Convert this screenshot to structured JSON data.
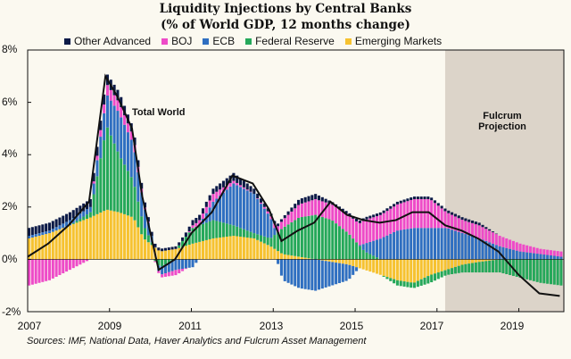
{
  "chart_data": {
    "type": "bar",
    "stacked": true,
    "title": "Liquidity Injections by Central Banks",
    "subtitle": "(% of World GDP, 12 months change)",
    "xlabel": "",
    "ylabel": "",
    "ylim": [
      -2,
      8
    ],
    "yticks": [
      "8%",
      "6%",
      "4%",
      "2%",
      "0%",
      "-2%"
    ],
    "ytick_values": [
      8,
      6,
      4,
      2,
      0,
      -2
    ],
    "xlim": [
      2007.0,
      2020.1
    ],
    "xticks": [
      "2007",
      "2009",
      "2011",
      "2013",
      "2015",
      "2017",
      "2019"
    ],
    "xtick_values": [
      2007,
      2009,
      2011,
      2013,
      2015,
      2017,
      2019
    ],
    "legend_position": "top",
    "colors": {
      "Other Advanced": "#0c1a47",
      "BOJ": "#ee4bc8",
      "ECB": "#2f6fc1",
      "Federal Reserve": "#25a85a",
      "Emerging Markets": "#f6c230",
      "Total World": "#111111",
      "projection_shade": "#dcd4c9"
    },
    "projection_start": 2017.2,
    "series": [
      {
        "name": "Emerging Markets",
        "x": [
          2007.0,
          2007.5,
          2008.0,
          2008.5,
          2008.9,
          2009.2,
          2009.55,
          2009.8,
          2010.2,
          2010.6,
          2011.0,
          2011.5,
          2012.0,
          2012.5,
          2012.9,
          2013.2,
          2013.6,
          2014.0,
          2014.4,
          2014.8,
          2015.2,
          2015.6,
          2016.0,
          2016.4,
          2016.8,
          2017.2,
          2017.6,
          2018.0,
          2018.5,
          2019.0,
          2019.5,
          2020.0
        ],
        "values": [
          0.8,
          1.0,
          1.3,
          1.6,
          1.9,
          1.8,
          1.6,
          0.8,
          0.3,
          0.4,
          0.6,
          0.8,
          0.9,
          0.8,
          0.5,
          0.2,
          0.1,
          0.0,
          -0.1,
          -0.2,
          -0.4,
          -0.6,
          -0.8,
          -0.9,
          -0.6,
          -0.4,
          -0.2,
          -0.1,
          0.0,
          0.0,
          0.0,
          0.0
        ]
      },
      {
        "name": "Federal Reserve",
        "x": [
          2007.0,
          2007.5,
          2008.0,
          2008.5,
          2008.9,
          2009.2,
          2009.55,
          2009.8,
          2010.2,
          2010.6,
          2011.0,
          2011.5,
          2012.0,
          2012.5,
          2012.9,
          2013.2,
          2013.6,
          2014.0,
          2014.4,
          2014.8,
          2015.2,
          2015.6,
          2016.0,
          2016.4,
          2016.8,
          2017.2,
          2017.6,
          2018.0,
          2018.5,
          2019.0,
          2019.5,
          2020.0
        ],
        "values": [
          0.0,
          0.0,
          0.0,
          0.2,
          3.2,
          2.2,
          1.4,
          0.5,
          -0.3,
          0.0,
          0.6,
          0.7,
          0.4,
          0.2,
          0.3,
          1.0,
          1.5,
          1.7,
          1.5,
          1.0,
          0.3,
          0.0,
          -0.2,
          -0.2,
          -0.3,
          -0.2,
          -0.3,
          -0.4,
          -0.5,
          -0.7,
          -0.9,
          -1.0
        ]
      },
      {
        "name": "ECB",
        "x": [
          2007.0,
          2007.5,
          2008.0,
          2008.5,
          2008.9,
          2009.2,
          2009.55,
          2009.8,
          2010.2,
          2010.6,
          2011.0,
          2011.5,
          2012.0,
          2012.5,
          2012.9,
          2013.2,
          2013.6,
          2014.0,
          2014.4,
          2014.8,
          2015.2,
          2015.6,
          2016.0,
          2016.4,
          2016.8,
          2017.2,
          2017.6,
          2018.0,
          2018.5,
          2019.0,
          2019.5,
          2020.0
        ],
        "values": [
          0.1,
          0.1,
          0.2,
          0.2,
          1.2,
          1.6,
          1.4,
          0.8,
          -0.3,
          -0.4,
          -0.3,
          0.7,
          1.6,
          1.5,
          0.8,
          -0.8,
          -1.1,
          -1.2,
          -0.9,
          -0.6,
          0.3,
          0.8,
          1.1,
          1.2,
          1.2,
          1.2,
          1.0,
          0.8,
          0.5,
          0.3,
          0.2,
          0.1
        ]
      },
      {
        "name": "BOJ",
        "x": [
          2007.0,
          2007.5,
          2008.0,
          2008.5,
          2008.9,
          2009.2,
          2009.55,
          2009.8,
          2010.2,
          2010.6,
          2011.0,
          2011.5,
          2012.0,
          2012.5,
          2012.9,
          2013.2,
          2013.6,
          2014.0,
          2014.4,
          2014.8,
          2015.2,
          2015.6,
          2016.0,
          2016.4,
          2016.8,
          2017.2,
          2017.6,
          2018.0,
          2018.5,
          2019.0,
          2019.5,
          2020.0
        ],
        "values": [
          -1.0,
          -0.8,
          -0.4,
          0.0,
          0.4,
          0.4,
          0.3,
          0.1,
          -0.1,
          -0.2,
          0.1,
          0.3,
          0.1,
          0.0,
          0.1,
          0.3,
          0.5,
          0.6,
          0.6,
          0.7,
          0.9,
          0.9,
          1.0,
          1.1,
          1.1,
          0.6,
          0.5,
          0.5,
          0.4,
          0.3,
          0.2,
          0.2
        ]
      },
      {
        "name": "Other Advanced",
        "x": [
          2007.0,
          2007.5,
          2008.0,
          2008.5,
          2008.9,
          2009.2,
          2009.55,
          2009.8,
          2010.2,
          2010.6,
          2011.0,
          2011.5,
          2012.0,
          2012.5,
          2012.9,
          2013.2,
          2013.6,
          2014.0,
          2014.4,
          2014.8,
          2015.2,
          2015.6,
          2016.0,
          2016.4,
          2016.8,
          2017.2,
          2017.6,
          2018.0,
          2018.5,
          2019.0,
          2019.5,
          2020.0
        ],
        "values": [
          0.3,
          0.3,
          0.3,
          0.3,
          0.4,
          0.4,
          0.3,
          0.2,
          0.1,
          0.1,
          0.2,
          0.2,
          0.3,
          0.2,
          0.1,
          0.1,
          0.2,
          0.2,
          0.1,
          0.1,
          0.1,
          0.1,
          0.1,
          0.1,
          0.1,
          0.1,
          0.1,
          0.1,
          0.0,
          0.0,
          0.0,
          0.0
        ]
      },
      {
        "name": "Total World",
        "type": "line",
        "x": [
          2007.0,
          2007.5,
          2008.0,
          2008.5,
          2008.9,
          2009.2,
          2009.55,
          2009.8,
          2010.2,
          2010.6,
          2011.0,
          2011.5,
          2012.0,
          2012.5,
          2012.9,
          2013.2,
          2013.6,
          2014.0,
          2014.4,
          2014.8,
          2015.2,
          2015.6,
          2016.0,
          2016.4,
          2016.8,
          2017.2,
          2017.6,
          2018.0,
          2018.5,
          2019.0,
          2019.5,
          2020.0
        ],
        "values": [
          0.1,
          0.6,
          1.3,
          2.2,
          7.0,
          6.2,
          5.0,
          2.4,
          -0.4,
          0.0,
          1.0,
          1.8,
          3.2,
          2.9,
          1.9,
          0.7,
          1.1,
          1.4,
          2.2,
          1.7,
          1.5,
          1.4,
          1.5,
          1.8,
          1.8,
          1.3,
          1.1,
          0.8,
          0.3,
          -0.6,
          -1.3,
          -1.4
        ]
      }
    ],
    "annotations": [
      {
        "text": "Total World",
        "x": 2010.2,
        "y": 5.6
      },
      {
        "text": "Fulcrum\nProjection",
        "x": 2018.6,
        "y": 5.4
      }
    ],
    "source": "Sources: IMF, National Data, Haver Analytics and Fulcrum Asset Management"
  }
}
